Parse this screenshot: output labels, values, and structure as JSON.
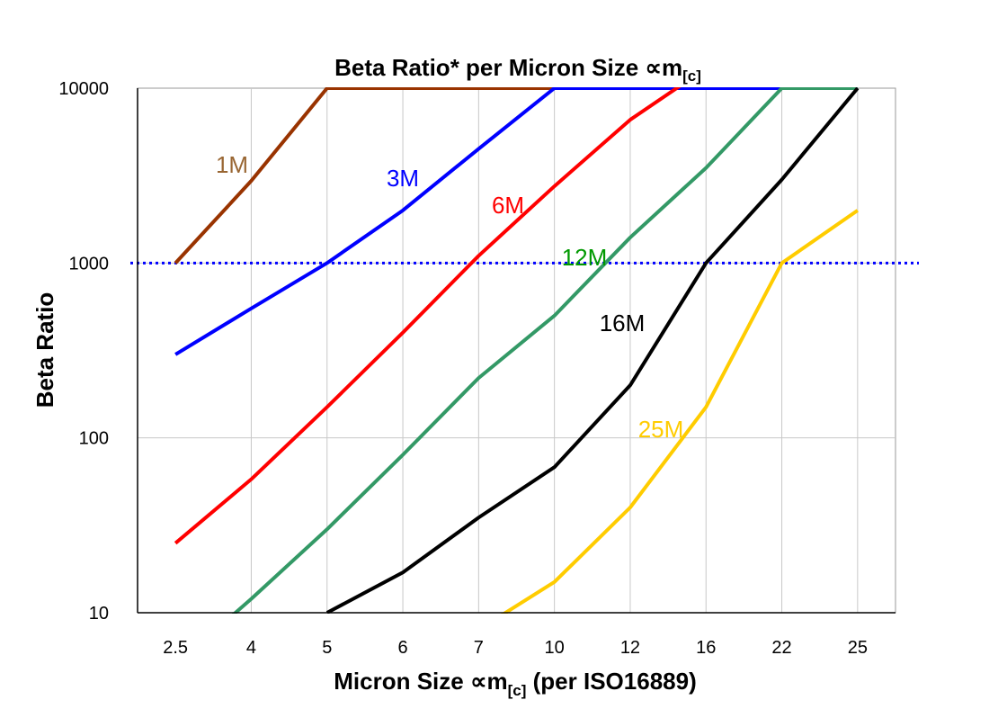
{
  "chart_data": {
    "type": "line",
    "title": "Beta Ratio* per Micron Size ∝m",
    "title_subscript": "[c]",
    "xlabel": "Micron Size ∝m",
    "xlabel_subscript": "[c]",
    "xlabel_suffix": " (per ISO16889)",
    "ylabel": "Beta Ratio",
    "y_scale": "log",
    "ylim": [
      10,
      10000
    ],
    "y_ticks": [
      "10",
      "100",
      "1000",
      "10000"
    ],
    "categories": [
      "2.5",
      "4",
      "5",
      "6",
      "7",
      "10",
      "12",
      "16",
      "22",
      "25"
    ],
    "grid": true,
    "reference_line": {
      "y": 1000,
      "color": "#0000FF",
      "style": "dotted"
    },
    "series": [
      {
        "name": "1M",
        "color": "#993300",
        "label_color": "#996633",
        "values": [
          1000,
          2950,
          10000,
          10000,
          10000,
          10000,
          10000,
          10000,
          10000,
          10000
        ]
      },
      {
        "name": "3M",
        "color": "#0000FF",
        "label_color": "#0000FF",
        "values": [
          300,
          550,
          1000,
          2000,
          4500,
          10000,
          10000,
          10000,
          10000,
          10000
        ]
      },
      {
        "name": "6M",
        "color": "#FF0000",
        "label_color": "#FF0000",
        "values": [
          25,
          58,
          150,
          400,
          1100,
          2750,
          6600,
          13000,
          null,
          null
        ]
      },
      {
        "name": "12M",
        "color": "#339966",
        "label_color": "#009900",
        "values": [
          5,
          12,
          30,
          80,
          220,
          500,
          1400,
          3500,
          10000,
          10000
        ]
      },
      {
        "name": "16M",
        "color": "#000000",
        "label_color": "#000000",
        "values": [
          null,
          null,
          10,
          17,
          35,
          68,
          200,
          1000,
          3000,
          10000
        ]
      },
      {
        "name": "25M",
        "color": "#FFCC00",
        "label_color": "#FFCC00",
        "values": [
          null,
          null,
          null,
          null,
          8,
          15,
          40,
          150,
          1000,
          2000
        ]
      }
    ]
  }
}
